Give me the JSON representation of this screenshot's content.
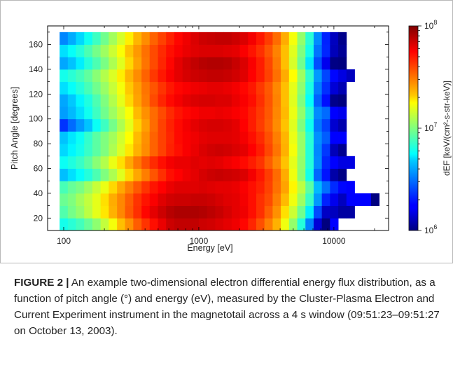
{
  "chart_data": {
    "type": "heatmap",
    "xlabel": "Energy [eV]",
    "ylabel": "Pitch Angle [degrees]",
    "x_scale": "log",
    "x_ticks": [
      "100",
      "1000",
      "10000"
    ],
    "y_ticks": [
      "20",
      "40",
      "60",
      "80",
      "100",
      "120",
      "140",
      "160"
    ],
    "colorbar": {
      "label": "dEF [keV/(cm²-s-str-keV)]",
      "scale": "log",
      "range": [
        1000000,
        100000000
      ],
      "ticks": [
        {
          "base": "10",
          "exp": "6"
        },
        {
          "base": "10",
          "exp": "7"
        },
        {
          "base": "10",
          "exp": "8"
        }
      ]
    },
    "energy_ev": [
      100,
      115,
      132,
      152,
      175,
      201,
      231,
      266,
      305,
      351,
      404,
      464,
      534,
      614,
      706,
      812,
      933,
      1073,
      1234,
      1419,
      1632,
      1877,
      2158,
      2482,
      2854,
      3282,
      3775,
      4341,
      4992,
      5741,
      6602,
      7592,
      8730,
      10040,
      11546,
      13278,
      15269,
      17559,
      20193
    ],
    "pitch_angle_deg": [
      15,
      25,
      35,
      45,
      55,
      65,
      75,
      85,
      95,
      105,
      115,
      125,
      135,
      145,
      155,
      165
    ],
    "log10_def": [
      [
        6.79,
        6.83,
        6.88,
        6.95,
        7.03,
        7.13,
        7.23,
        7.34,
        7.44,
        7.55,
        7.64,
        7.72,
        7.79,
        7.85,
        7.87,
        7.87,
        7.87,
        7.85,
        7.84,
        7.82,
        7.8,
        7.78,
        7.74,
        7.67,
        7.58,
        7.48,
        7.37,
        7.22,
        7.04,
        6.82,
        6.53,
        6.15,
        5.73,
        6.24,
        null,
        null,
        null,
        null,
        null
      ],
      [
        6.91,
        6.98,
        7.04,
        7.12,
        7.2,
        7.28,
        7.37,
        7.46,
        7.56,
        7.65,
        7.74,
        7.8,
        7.85,
        7.89,
        7.91,
        7.91,
        7.91,
        7.9,
        7.88,
        7.86,
        7.83,
        7.8,
        7.78,
        7.72,
        7.65,
        7.55,
        7.44,
        7.29,
        7.15,
        6.97,
        6.73,
        6.41,
        6.12,
        6.11,
        6.06,
        6.06,
        null,
        null,
        null
      ],
      [
        6.96,
        7.0,
        7.07,
        7.13,
        7.2,
        7.29,
        7.38,
        7.46,
        7.55,
        7.64,
        7.71,
        7.76,
        7.81,
        7.84,
        7.85,
        7.85,
        7.86,
        7.86,
        7.85,
        7.83,
        7.81,
        7.8,
        7.77,
        7.72,
        7.65,
        7.59,
        7.48,
        7.35,
        7.22,
        7.06,
        6.86,
        6.58,
        6.32,
        6.19,
        6.11,
        6.23,
        6.22,
        6.22,
        5.85
      ],
      [
        6.89,
        6.95,
        6.99,
        7.06,
        7.14,
        7.21,
        7.3,
        7.39,
        7.48,
        7.56,
        7.64,
        7.71,
        7.75,
        7.79,
        7.81,
        7.81,
        7.81,
        7.82,
        7.81,
        7.8,
        7.8,
        7.79,
        7.76,
        7.72,
        7.68,
        7.61,
        7.51,
        7.4,
        7.26,
        7.12,
        6.93,
        6.65,
        6.49,
        6.34,
        6.26,
        6.25,
        null,
        null,
        null
      ],
      [
        6.66,
        6.71,
        6.76,
        6.82,
        6.9,
        7.0,
        7.09,
        7.19,
        7.3,
        7.39,
        7.48,
        7.57,
        7.65,
        7.72,
        7.75,
        7.78,
        7.8,
        7.83,
        7.85,
        7.86,
        7.85,
        7.84,
        7.82,
        7.77,
        7.7,
        7.62,
        7.52,
        7.38,
        7.22,
        7.03,
        6.79,
        6.47,
        6.29,
        6.07,
        6.01,
        null,
        null,
        null,
        null
      ],
      [
        6.77,
        6.81,
        6.86,
        6.93,
        7.02,
        7.1,
        7.21,
        7.29,
        7.39,
        7.49,
        7.58,
        7.66,
        7.72,
        7.77,
        7.79,
        7.79,
        7.81,
        7.8,
        7.81,
        7.8,
        7.78,
        7.76,
        7.73,
        7.69,
        7.64,
        7.55,
        7.46,
        7.33,
        7.2,
        7.04,
        6.82,
        6.55,
        6.33,
        6.25,
        6.17,
        6.17,
        null,
        null,
        null
      ],
      [
        6.7,
        6.74,
        6.79,
        6.86,
        6.93,
        7.0,
        7.09,
        7.18,
        7.28,
        7.37,
        7.45,
        7.54,
        7.61,
        7.68,
        7.72,
        7.76,
        7.79,
        7.82,
        7.84,
        7.85,
        7.84,
        7.82,
        7.8,
        7.75,
        7.69,
        7.6,
        7.5,
        7.37,
        7.23,
        7.05,
        6.82,
        6.54,
        6.37,
        6.1,
        6.03,
        null,
        null,
        null,
        null
      ],
      [
        6.67,
        6.72,
        6.77,
        6.85,
        6.93,
        7.0,
        7.07,
        7.16,
        7.25,
        7.35,
        7.44,
        7.54,
        7.61,
        7.67,
        7.73,
        7.76,
        7.78,
        7.8,
        7.81,
        7.81,
        7.81,
        7.8,
        7.77,
        7.72,
        7.66,
        7.58,
        7.48,
        7.36,
        7.21,
        7.05,
        6.83,
        6.56,
        6.45,
        6.24,
        6.22,
        null,
        null,
        null,
        null
      ],
      [
        6.36,
        6.48,
        6.58,
        6.67,
        6.77,
        6.87,
        6.98,
        7.09,
        7.2,
        7.31,
        7.41,
        7.52,
        7.61,
        7.68,
        7.73,
        7.77,
        7.8,
        7.82,
        7.83,
        7.83,
        7.82,
        7.8,
        7.75,
        7.69,
        7.62,
        7.55,
        7.45,
        7.33,
        7.19,
        7.0,
        6.78,
        6.51,
        6.39,
        6.14,
        6.08,
        null,
        null,
        null,
        null
      ],
      [
        6.59,
        6.65,
        6.71,
        6.78,
        6.87,
        6.97,
        7.06,
        7.15,
        7.24,
        7.35,
        7.44,
        7.52,
        7.59,
        7.66,
        7.71,
        7.74,
        7.76,
        7.78,
        7.78,
        7.79,
        7.78,
        7.76,
        7.74,
        7.69,
        7.63,
        7.56,
        7.46,
        7.35,
        7.21,
        7.04,
        6.83,
        6.55,
        6.48,
        6.23,
        6.19,
        null,
        null,
        null,
        null
      ],
      [
        6.61,
        6.68,
        6.74,
        6.81,
        6.9,
        7.0,
        7.1,
        7.2,
        7.3,
        7.4,
        7.49,
        7.59,
        7.67,
        7.73,
        7.77,
        7.8,
        7.82,
        7.83,
        7.83,
        7.82,
        7.82,
        7.79,
        7.76,
        7.72,
        7.65,
        7.57,
        7.47,
        7.34,
        7.19,
        7.0,
        6.76,
        6.46,
        6.28,
        6.02,
        5.98,
        null,
        null,
        null,
        null
      ],
      [
        6.71,
        6.76,
        6.82,
        6.89,
        6.97,
        7.05,
        7.14,
        7.23,
        7.32,
        7.41,
        7.5,
        7.57,
        7.64,
        7.7,
        7.74,
        7.76,
        7.78,
        7.79,
        7.8,
        7.8,
        7.79,
        7.77,
        7.74,
        7.7,
        7.63,
        7.56,
        7.46,
        7.34,
        7.2,
        7.03,
        6.8,
        6.52,
        6.35,
        6.15,
        6.09,
        null,
        null,
        null,
        null
      ],
      [
        6.79,
        6.83,
        6.88,
        6.94,
        7.02,
        7.1,
        7.18,
        7.27,
        7.36,
        7.45,
        7.54,
        7.63,
        7.7,
        7.76,
        7.8,
        7.83,
        7.85,
        7.86,
        7.87,
        7.87,
        7.86,
        7.84,
        7.81,
        7.75,
        7.69,
        7.61,
        7.51,
        7.38,
        7.25,
        7.06,
        6.84,
        6.58,
        6.4,
        6.26,
        6.17,
        6.11,
        null,
        null,
        null
      ],
      [
        6.61,
        6.67,
        6.73,
        6.82,
        6.9,
        6.99,
        7.09,
        7.19,
        7.3,
        7.4,
        7.5,
        7.59,
        7.67,
        7.74,
        7.8,
        7.84,
        7.87,
        7.89,
        7.9,
        7.9,
        7.89,
        7.86,
        7.82,
        7.76,
        7.69,
        7.6,
        7.49,
        7.34,
        7.17,
        6.97,
        6.72,
        6.42,
        6.19,
        6.01,
        5.96,
        null,
        null,
        null,
        null
      ],
      [
        6.71,
        6.76,
        6.82,
        6.9,
        6.98,
        7.06,
        7.15,
        7.24,
        7.33,
        7.42,
        7.51,
        7.59,
        7.66,
        7.72,
        7.76,
        7.79,
        7.81,
        7.82,
        7.82,
        7.82,
        7.81,
        7.8,
        7.76,
        7.71,
        7.65,
        7.57,
        7.47,
        7.34,
        7.19,
        7.0,
        6.79,
        6.5,
        6.33,
        6.1,
        6.04,
        null,
        null,
        null,
        null
      ],
      [
        6.54,
        6.62,
        6.7,
        6.78,
        6.87,
        6.97,
        7.07,
        7.17,
        7.27,
        7.36,
        7.45,
        7.54,
        7.61,
        7.68,
        7.74,
        7.78,
        7.82,
        7.85,
        7.86,
        7.87,
        7.87,
        7.85,
        7.82,
        7.77,
        7.7,
        7.62,
        7.52,
        7.38,
        7.23,
        7.04,
        6.83,
        6.55,
        6.32,
        6.11,
        6.02,
        null,
        null,
        null,
        null
      ]
    ]
  },
  "caption": {
    "label": "FIGURE 2 |",
    "text": " An example two-dimensional electron differential energy flux distribution, as a function of pitch angle (°) and energy (eV), measured by the Cluster-Plasma Electron and Current Experiment instrument in the magnetotail across a 4 s window (09:51:23–09:51:27 on October 13, 2003)."
  }
}
